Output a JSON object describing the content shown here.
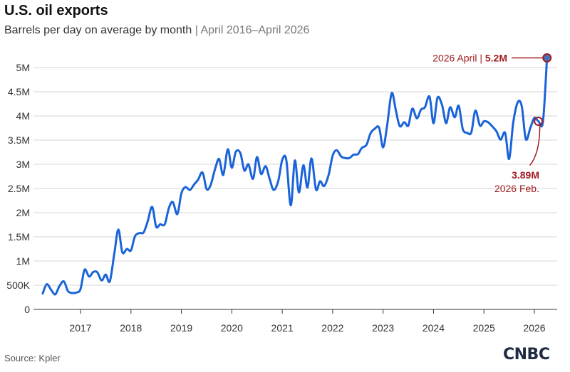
{
  "header": {
    "title": "U.S. oil exports",
    "subtitle_main": "Barrels per day on average by month",
    "subtitle_sep": "|",
    "subtitle_range": "April 2016–April 2026"
  },
  "footer": {
    "source": "Source: Kpler",
    "logo_text": "CNBC"
  },
  "colors": {
    "line": "#1a63d8",
    "annotation": "#a11d21",
    "grid": "#d5d5d5"
  },
  "chart_data": {
    "type": "line",
    "title": "U.S. oil exports",
    "subtitle": "Barrels per day on average by month | April 2016–April 2026",
    "xlabel": "",
    "ylabel": "",
    "xlim": [
      2016.25,
      2026.25
    ],
    "ylim": [
      0,
      5000000
    ],
    "grid": true,
    "y_ticks": [
      {
        "value": 0,
        "label": "0"
      },
      {
        "value": 500000,
        "label": "500K"
      },
      {
        "value": 1000000,
        "label": "1M"
      },
      {
        "value": 1500000,
        "label": "1.5M"
      },
      {
        "value": 2000000,
        "label": "2M"
      },
      {
        "value": 2500000,
        "label": "2.5M"
      },
      {
        "value": 3000000,
        "label": "3M"
      },
      {
        "value": 3500000,
        "label": "3.5M"
      },
      {
        "value": 4000000,
        "label": "4M"
      },
      {
        "value": 4500000,
        "label": "4.5M"
      },
      {
        "value": 5000000,
        "label": "5M"
      }
    ],
    "x_ticks": [
      {
        "value": 2017,
        "label": "2017"
      },
      {
        "value": 2018,
        "label": "2018"
      },
      {
        "value": 2019,
        "label": "2019"
      },
      {
        "value": 2020,
        "label": "2020"
      },
      {
        "value": 2021,
        "label": "2021"
      },
      {
        "value": 2022,
        "label": "2022"
      },
      {
        "value": 2023,
        "label": "2023"
      },
      {
        "value": 2024,
        "label": "2024"
      },
      {
        "value": 2025,
        "label": "2025"
      },
      {
        "value": 2026,
        "label": "2026"
      }
    ],
    "series": [
      {
        "x": [
          2016.25,
          2016.33,
          2016.42,
          2016.5,
          2016.58,
          2016.67,
          2016.75,
          2016.83,
          2016.92,
          2017.0,
          2017.08,
          2017.17,
          2017.25,
          2017.33,
          2017.42,
          2017.5,
          2017.58,
          2017.67,
          2017.75,
          2017.83,
          2017.92,
          2018.0,
          2018.08,
          2018.17,
          2018.25,
          2018.33,
          2018.42,
          2018.5,
          2018.58,
          2018.67,
          2018.75,
          2018.83,
          2018.92,
          2019.0,
          2019.08,
          2019.17,
          2019.25,
          2019.33,
          2019.42,
          2019.5,
          2019.58,
          2019.67,
          2019.75,
          2019.83,
          2019.92,
          2020.0,
          2020.08,
          2020.17,
          2020.25,
          2020.33,
          2020.42,
          2020.5,
          2020.58,
          2020.67,
          2020.75,
          2020.83,
          2020.92,
          2021.0,
          2021.08,
          2021.17,
          2021.25,
          2021.33,
          2021.42,
          2021.5,
          2021.58,
          2021.67,
          2021.75,
          2021.83,
          2021.92,
          2022.0,
          2022.08,
          2022.17,
          2022.25,
          2022.33,
          2022.42,
          2022.5,
          2022.58,
          2022.67,
          2022.75,
          2022.83,
          2022.92,
          2023.0,
          2023.08,
          2023.17,
          2023.25,
          2023.33,
          2023.42,
          2023.5,
          2023.58,
          2023.67,
          2023.75,
          2023.83,
          2023.92,
          2024.0,
          2024.08,
          2024.17,
          2024.25,
          2024.33,
          2024.42,
          2024.5,
          2024.58,
          2024.67,
          2024.75,
          2024.83,
          2024.92,
          2025.0,
          2025.08,
          2025.17,
          2025.25,
          2025.33,
          2025.42,
          2025.5,
          2025.58,
          2025.67,
          2025.75,
          2025.83,
          2025.92,
          2026.0,
          2026.08,
          2026.17,
          2026.25
        ],
        "values": [
          330000,
          520000,
          400000,
          310000,
          480000,
          580000,
          380000,
          340000,
          350000,
          420000,
          820000,
          680000,
          770000,
          770000,
          600000,
          720000,
          580000,
          1150000,
          1650000,
          1180000,
          1250000,
          1220000,
          1510000,
          1580000,
          1590000,
          1810000,
          2120000,
          1710000,
          1760000,
          1760000,
          2090000,
          2220000,
          1970000,
          2400000,
          2530000,
          2470000,
          2580000,
          2680000,
          2830000,
          2490000,
          2570000,
          2910000,
          3110000,
          2780000,
          3310000,
          2930000,
          3260000,
          3230000,
          2870000,
          3000000,
          2700000,
          3150000,
          2800000,
          2960000,
          2700000,
          2470000,
          2650000,
          3090000,
          3090000,
          2150000,
          3080000,
          2420000,
          2980000,
          2520000,
          3120000,
          2480000,
          2650000,
          2550000,
          2780000,
          3180000,
          3290000,
          3160000,
          3130000,
          3130000,
          3200000,
          3210000,
          3340000,
          3400000,
          3640000,
          3730000,
          3760000,
          3350000,
          3800000,
          4470000,
          4130000,
          3790000,
          3870000,
          3800000,
          4150000,
          3950000,
          4130000,
          4180000,
          4400000,
          3850000,
          4380000,
          4220000,
          3850000,
          4180000,
          3970000,
          4210000,
          3730000,
          3650000,
          3660000,
          4110000,
          3800000,
          3890000,
          3870000,
          3780000,
          3680000,
          3510000,
          3650000,
          3110000,
          3860000,
          4280000,
          4200000,
          3520000,
          3750000,
          3960000,
          3890000,
          3880000,
          5200000
        ]
      }
    ],
    "annotations": [
      {
        "date_label": "2026 April",
        "sep": "|",
        "value_label": "5.2M",
        "x": 2026.25,
        "y": 5200000
      },
      {
        "date_label": "2026 Feb.",
        "value_label": "3.89M",
        "x": 2026.08,
        "y": 3890000
      }
    ]
  }
}
